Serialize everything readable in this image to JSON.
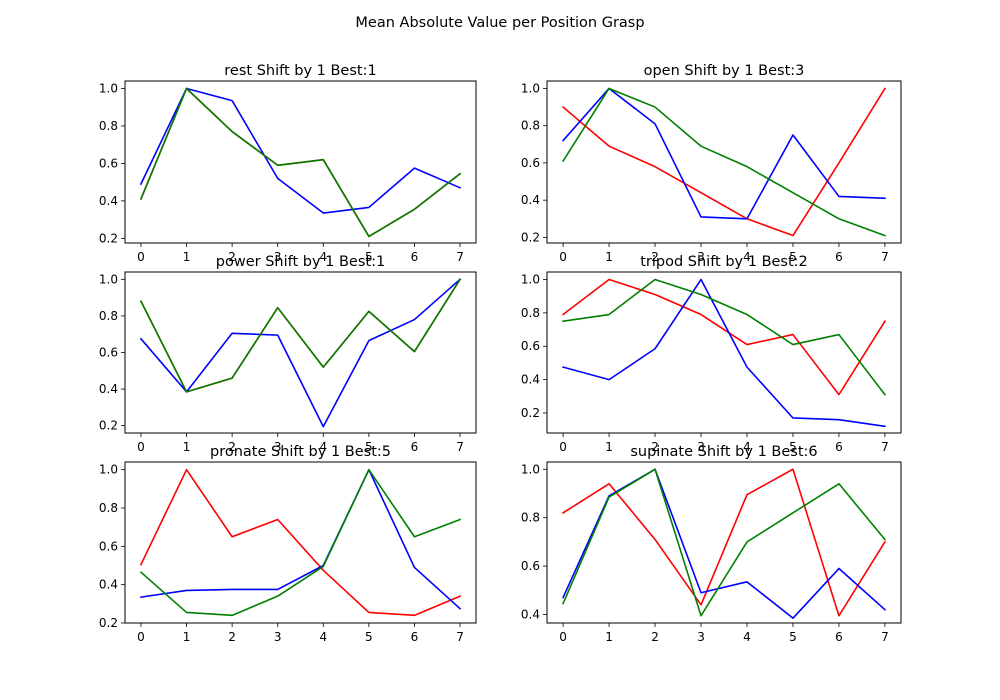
{
  "figure": {
    "suptitle": "Mean Absolute Value per Position Grasp"
  },
  "chart_data": [
    {
      "type": "line",
      "title": "rest Shift by 1 Best:1",
      "x": [
        0,
        1,
        2,
        3,
        4,
        5,
        6,
        7
      ],
      "xlim": [
        -0.35,
        7.35
      ],
      "ylim": [
        0.175,
        1.04
      ],
      "yticks": [
        0.2,
        0.4,
        0.6,
        0.8,
        1.0
      ],
      "series": [
        {
          "color": "#ff0000",
          "values": [
            0.41,
            1.0,
            0.77,
            0.59,
            0.62,
            0.21,
            0.355,
            0.545
          ]
        },
        {
          "color": "#0000ff",
          "values": [
            0.49,
            1.0,
            0.935,
            0.52,
            0.335,
            0.365,
            0.575,
            0.47
          ]
        },
        {
          "color": "#008000",
          "values": [
            0.41,
            1.0,
            0.77,
            0.59,
            0.62,
            0.21,
            0.355,
            0.545
          ]
        }
      ]
    },
    {
      "type": "line",
      "title": "open Shift by 1 Best:3",
      "x": [
        0,
        1,
        2,
        3,
        4,
        5,
        6,
        7
      ],
      "xlim": [
        -0.35,
        7.35
      ],
      "ylim": [
        0.17,
        1.04
      ],
      "yticks": [
        0.2,
        0.4,
        0.6,
        0.8,
        1.0
      ],
      "series": [
        {
          "color": "#ff0000",
          "values": [
            0.9,
            0.69,
            0.58,
            0.44,
            0.3,
            0.21,
            0.6,
            1.0
          ]
        },
        {
          "color": "#0000ff",
          "values": [
            0.72,
            1.0,
            0.81,
            0.31,
            0.3,
            0.75,
            0.42,
            0.41
          ]
        },
        {
          "color": "#008000",
          "values": [
            0.61,
            1.0,
            0.9,
            0.69,
            0.58,
            0.44,
            0.3,
            0.21
          ]
        }
      ]
    },
    {
      "type": "line",
      "title": "power Shift by 1 Best:1",
      "x": [
        0,
        1,
        2,
        3,
        4,
        5,
        6,
        7
      ],
      "xlim": [
        -0.35,
        7.35
      ],
      "ylim": [
        0.16,
        1.04
      ],
      "yticks": [
        0.2,
        0.4,
        0.6,
        0.8,
        1.0
      ],
      "series": [
        {
          "color": "#ff0000",
          "values": [
            0.88,
            0.385,
            0.46,
            0.845,
            0.52,
            0.825,
            0.605,
            1.0
          ]
        },
        {
          "color": "#0000ff",
          "values": [
            0.675,
            0.385,
            0.705,
            0.695,
            0.195,
            0.665,
            0.78,
            1.0
          ]
        },
        {
          "color": "#008000",
          "values": [
            0.88,
            0.385,
            0.46,
            0.845,
            0.52,
            0.825,
            0.605,
            1.0
          ]
        }
      ]
    },
    {
      "type": "line",
      "title": "tripod Shift by 1 Best:2",
      "x": [
        0,
        1,
        2,
        3,
        4,
        5,
        6,
        7
      ],
      "xlim": [
        -0.35,
        7.35
      ],
      "ylim": [
        0.08,
        1.045
      ],
      "yticks": [
        0.2,
        0.4,
        0.6,
        0.8,
        1.0
      ],
      "series": [
        {
          "color": "#ff0000",
          "values": [
            0.79,
            1.0,
            0.91,
            0.79,
            0.61,
            0.67,
            0.31,
            0.75
          ]
        },
        {
          "color": "#0000ff",
          "values": [
            0.475,
            0.4,
            0.585,
            1.0,
            0.475,
            0.17,
            0.16,
            0.12
          ]
        },
        {
          "color": "#008000",
          "values": [
            0.75,
            0.79,
            1.0,
            0.91,
            0.79,
            0.61,
            0.67,
            0.31
          ]
        }
      ]
    },
    {
      "type": "line",
      "title": "pronate Shift by 1 Best:5",
      "x": [
        0,
        1,
        2,
        3,
        4,
        5,
        6,
        7
      ],
      "xlim": [
        -0.35,
        7.35
      ],
      "ylim": [
        0.2,
        1.04
      ],
      "yticks": [
        0.2,
        0.4,
        0.6,
        0.8,
        1.0
      ],
      "series": [
        {
          "color": "#ff0000",
          "values": [
            0.505,
            1.0,
            0.65,
            0.74,
            0.475,
            0.255,
            0.24,
            0.34
          ]
        },
        {
          "color": "#0000ff",
          "values": [
            0.335,
            0.37,
            0.375,
            0.375,
            0.5,
            1.0,
            0.49,
            0.275
          ]
        },
        {
          "color": "#008000",
          "values": [
            0.465,
            0.255,
            0.24,
            0.34,
            0.495,
            1.0,
            0.65,
            0.74
          ]
        }
      ]
    },
    {
      "type": "line",
      "title": "supinate Shift by 1 Best:6",
      "x": [
        0,
        1,
        2,
        3,
        4,
        5,
        6,
        7
      ],
      "xlim": [
        -0.35,
        7.35
      ],
      "ylim": [
        0.365,
        1.03
      ],
      "yticks": [
        0.4,
        0.6,
        0.8,
        1.0
      ],
      "series": [
        {
          "color": "#ff0000",
          "values": [
            0.82,
            0.94,
            0.71,
            0.44,
            0.895,
            1.0,
            0.395,
            0.7
          ]
        },
        {
          "color": "#0000ff",
          "values": [
            0.47,
            0.89,
            1.0,
            0.49,
            0.535,
            0.385,
            0.59,
            0.42
          ]
        },
        {
          "color": "#008000",
          "values": [
            0.445,
            0.885,
            1.0,
            0.395,
            0.7,
            0.82,
            0.94,
            0.71
          ]
        }
      ]
    }
  ]
}
